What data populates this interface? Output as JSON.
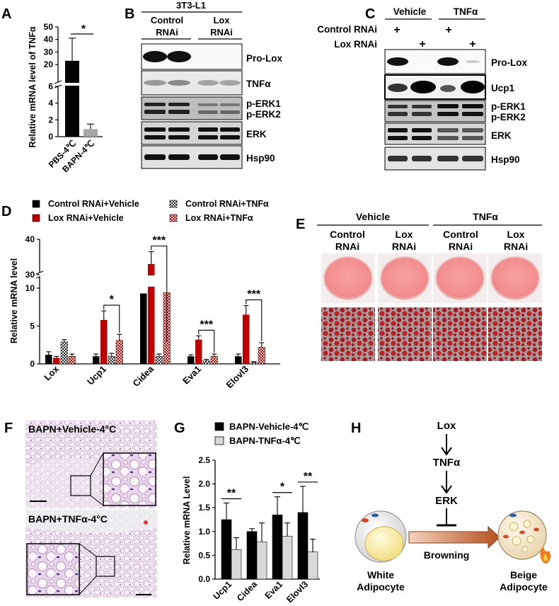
{
  "panels": {
    "A": "A",
    "B": "B",
    "C": "C",
    "D": "D",
    "E": "E",
    "F": "F",
    "G": "G",
    "H": "H"
  },
  "panelA": {
    "ylabel": "Relative mRNA level of TNFα",
    "sig": "*",
    "ticks_top": [
      "50",
      "40",
      "30",
      "20",
      "6"
    ],
    "ticks_bottom": [
      "4",
      "2",
      "0"
    ],
    "colors": {
      "pbs": "#000000",
      "bapn": "#a6a6a6"
    }
  },
  "chart_data": [
    {
      "type": "bar",
      "panel": "A",
      "title": "",
      "xlabel": "",
      "ylabel": "Relative mRNA level of TNFα",
      "categories": [
        "PBS-4℃",
        "BAPN-4℃"
      ],
      "values": [
        23,
        0.9
      ],
      "errors": [
        18,
        0.6
      ],
      "broken_axis": {
        "lower": [
          0,
          6
        ],
        "upper": [
          6,
          50
        ]
      },
      "annotations": [
        "*"
      ]
    },
    {
      "type": "bar",
      "panel": "D",
      "title": "",
      "xlabel": "",
      "ylabel": "Relative mRNA level",
      "categories": [
        "Lox",
        "Ucp1",
        "Cidea",
        "Eva1",
        "Elovl3"
      ],
      "series": [
        {
          "name": "Control RNAi+Vehicle",
          "values": [
            1.2,
            1.0,
            9.3,
            1.0,
            1.0
          ],
          "errors": [
            0.4,
            0.3,
            2.0,
            0.2,
            0.3
          ]
        },
        {
          "name": "Lox RNAi+Vehicle",
          "values": [
            0.8,
            5.8,
            33,
            3.2,
            6.5
          ],
          "errors": [
            0.2,
            1.2,
            3.5,
            0.5,
            1.2
          ]
        },
        {
          "name": "Control RNAi+TNFα",
          "values": [
            2.9,
            1.0,
            1.0,
            0.4,
            0.2
          ],
          "errors": [
            0.3,
            0.4,
            0.3,
            0.2,
            0.1
          ]
        },
        {
          "name": "Lox RNAi+TNFα",
          "values": [
            1.0,
            3.1,
            9.4,
            1.0,
            2.2
          ],
          "errors": [
            0.3,
            0.8,
            1.2,
            0.3,
            0.6
          ]
        }
      ],
      "broken_axis": {
        "lower": [
          0,
          10
        ],
        "upper": [
          30,
          40
        ]
      },
      "annotations": [
        "*",
        "***",
        "***",
        "***"
      ]
    },
    {
      "type": "bar",
      "panel": "G",
      "title": "",
      "xlabel": "",
      "ylabel": "Relative mRNA Level",
      "categories": [
        "Ucp1",
        "Cidea",
        "Eva1",
        "Elovl3"
      ],
      "series": [
        {
          "name": "BAPN-Vehicle-4℃",
          "values": [
            1.25,
            1.0,
            1.35,
            1.4
          ],
          "errors": [
            0.35,
            0.06,
            0.38,
            0.55
          ]
        },
        {
          "name": "BAPN-TNFα-4℃",
          "values": [
            0.62,
            0.78,
            0.9,
            0.57
          ],
          "errors": [
            0.25,
            0.4,
            0.28,
            0.27
          ]
        }
      ],
      "ylim": [
        0,
        2.5
      ],
      "annotations": [
        "**",
        "*",
        "**"
      ]
    }
  ],
  "panelB": {
    "cell_line": "3T3-L1",
    "groups": [
      "Control",
      "RNAi",
      "Lox",
      "RNAi"
    ],
    "rows": [
      "Pro-Lox",
      "TNFα",
      "p-ERK1",
      "p-ERK2",
      "ERK",
      "Hsp90"
    ]
  },
  "panelC": {
    "treatments": [
      "Vehicle",
      "TNFα"
    ],
    "row_labels": [
      "Control RNAi",
      "Lox RNAi"
    ],
    "plus": "+",
    "rows": [
      "Pro-Lox",
      "Ucp1",
      "p-ERK1",
      "p-ERK2",
      "ERK",
      "Hsp90"
    ]
  },
  "panelD": {
    "ylabel": "Relative mRNA level",
    "ticks_top": [
      "40",
      "30"
    ],
    "ticks_bottom": [
      "10",
      "5",
      "0"
    ],
    "colors": {
      "s1": "#000000",
      "s2": "#c00000",
      "s3": "#ffffff",
      "s4": "#f4b6b6"
    },
    "sig": [
      "*",
      "***",
      "***",
      "***"
    ]
  },
  "panelE": {
    "treatments": [
      "Vehicle",
      "TNFα"
    ],
    "cols": [
      "Control",
      "RNAi",
      "Lox",
      "RNAi",
      "Control",
      "RNAi",
      "Lox",
      "RNAi"
    ]
  },
  "panelF": {
    "top": "BAPN+Vehicle-4°C",
    "bottom": "BAPN+TNFα-4°C"
  },
  "panelG": {
    "ylabel": "Relative mRNA Level",
    "ticks": [
      "2.5",
      "2.0",
      "1.5",
      "1.0",
      "0.5",
      "0.0"
    ],
    "colors": {
      "s1": "#000000",
      "s2": "#d9d9d9"
    },
    "sig": [
      "**",
      "*",
      "**"
    ]
  },
  "panelH": {
    "lox": "Lox",
    "tnf": "TNFα",
    "erk": "ERK",
    "browning": "Browning",
    "white1": "White",
    "white2": "Adipocyte",
    "beige1": "Beige",
    "beige2": "Adipocyte"
  }
}
